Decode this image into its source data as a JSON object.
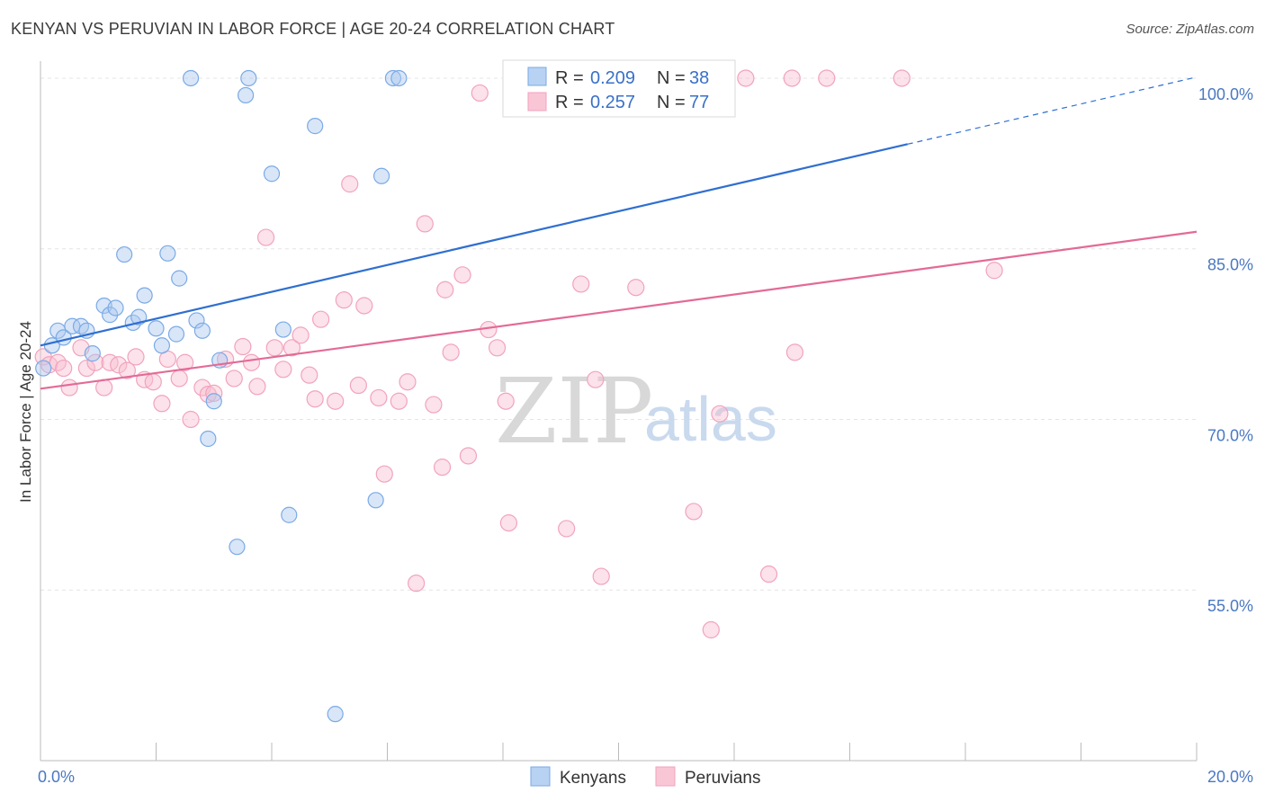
{
  "header": {
    "title": "KENYAN VS PERUVIAN IN LABOR FORCE | AGE 20-24 CORRELATION CHART",
    "source": "Source: ZipAtlas.com"
  },
  "watermark": {
    "zip": "ZIP",
    "atlas": "atlas"
  },
  "legend": {
    "r_label": "R =",
    "n_label": "N =",
    "kenyans": {
      "r": "0.209",
      "n": "38"
    },
    "peruvians": {
      "r": "0.257",
      "n": "77"
    }
  },
  "bottom_legend": {
    "kenyans": "Kenyans",
    "peruvians": "Peruvians"
  },
  "chart_data": {
    "type": "scatter",
    "xlabel": "",
    "ylabel": "In Labor Force | Age 20-24",
    "xlim": [
      0,
      20
    ],
    "ylim": [
      40,
      101.5
    ],
    "x_tick_labels": [
      "0.0%",
      "20.0%"
    ],
    "y_ticks": [
      55,
      70,
      85,
      100
    ],
    "y_tick_labels": [
      "55.0%",
      "70.0%",
      "85.0%",
      "100.0%"
    ],
    "grid": true,
    "colors": {
      "kenyans": "#7aaae6",
      "peruvians": "#f1a3bd",
      "kenyans_line": "#2f6fd0",
      "peruvians_line": "#e36a96"
    },
    "series": [
      {
        "name": "Kenyans",
        "trend": {
          "x0": 0,
          "y0": 76.5,
          "x1": 20,
          "y1": 100.1,
          "solid_until": 15
        },
        "points": [
          [
            0.05,
            74.5
          ],
          [
            0.2,
            76.5
          ],
          [
            0.3,
            77.8
          ],
          [
            0.4,
            77.2
          ],
          [
            0.55,
            78.2
          ],
          [
            0.7,
            78.2
          ],
          [
            0.8,
            77.8
          ],
          [
            0.9,
            75.8
          ],
          [
            1.1,
            80.0
          ],
          [
            1.2,
            79.2
          ],
          [
            1.3,
            79.8
          ],
          [
            1.45,
            84.5
          ],
          [
            1.6,
            78.5
          ],
          [
            1.7,
            79.0
          ],
          [
            1.8,
            80.9
          ],
          [
            2.0,
            78.0
          ],
          [
            2.1,
            76.5
          ],
          [
            2.2,
            84.6
          ],
          [
            2.35,
            77.5
          ],
          [
            2.4,
            82.4
          ],
          [
            2.6,
            100.0
          ],
          [
            2.7,
            78.7
          ],
          [
            2.8,
            77.8
          ],
          [
            2.9,
            68.3
          ],
          [
            3.0,
            71.6
          ],
          [
            3.1,
            75.2
          ],
          [
            3.4,
            58.8
          ],
          [
            3.55,
            98.5
          ],
          [
            3.6,
            100.0
          ],
          [
            4.0,
            91.6
          ],
          [
            4.2,
            77.9
          ],
          [
            4.3,
            61.6
          ],
          [
            4.75,
            95.8
          ],
          [
            5.1,
            44.1
          ],
          [
            5.8,
            62.9
          ],
          [
            5.9,
            91.4
          ],
          [
            6.1,
            100.0
          ],
          [
            6.2,
            100.0
          ]
        ]
      },
      {
        "name": "Peruvians",
        "trend": {
          "x0": 0,
          "y0": 72.7,
          "x1": 20,
          "y1": 86.5,
          "solid_until": 20
        },
        "points": [
          [
            0.05,
            75.5
          ],
          [
            0.15,
            74.8
          ],
          [
            0.3,
            75.0
          ],
          [
            0.4,
            74.5
          ],
          [
            0.5,
            72.8
          ],
          [
            0.7,
            76.3
          ],
          [
            0.8,
            74.5
          ],
          [
            0.95,
            75.0
          ],
          [
            1.1,
            72.8
          ],
          [
            1.2,
            75.0
          ],
          [
            1.35,
            74.8
          ],
          [
            1.5,
            74.3
          ],
          [
            1.65,
            75.5
          ],
          [
            1.8,
            73.5
          ],
          [
            1.95,
            73.3
          ],
          [
            2.1,
            71.4
          ],
          [
            2.2,
            75.3
          ],
          [
            2.4,
            73.6
          ],
          [
            2.5,
            75.0
          ],
          [
            2.6,
            70.0
          ],
          [
            2.8,
            72.8
          ],
          [
            2.9,
            72.2
          ],
          [
            3.0,
            72.3
          ],
          [
            3.2,
            75.3
          ],
          [
            3.35,
            73.6
          ],
          [
            3.5,
            76.4
          ],
          [
            3.65,
            75.0
          ],
          [
            3.75,
            72.9
          ],
          [
            3.9,
            86.0
          ],
          [
            4.05,
            76.3
          ],
          [
            4.2,
            74.4
          ],
          [
            4.35,
            76.3
          ],
          [
            4.5,
            77.4
          ],
          [
            4.65,
            73.9
          ],
          [
            4.75,
            71.8
          ],
          [
            4.85,
            78.8
          ],
          [
            5.1,
            71.6
          ],
          [
            5.25,
            80.5
          ],
          [
            5.35,
            90.7
          ],
          [
            5.5,
            73.0
          ],
          [
            5.6,
            80.0
          ],
          [
            5.85,
            71.9
          ],
          [
            5.95,
            65.2
          ],
          [
            6.2,
            71.6
          ],
          [
            6.35,
            73.3
          ],
          [
            6.5,
            55.6
          ],
          [
            6.65,
            87.2
          ],
          [
            6.8,
            71.3
          ],
          [
            6.95,
            65.8
          ],
          [
            7.0,
            81.4
          ],
          [
            7.1,
            75.9
          ],
          [
            7.3,
            82.7
          ],
          [
            7.4,
            66.8
          ],
          [
            7.6,
            98.7
          ],
          [
            7.75,
            77.9
          ],
          [
            7.9,
            76.3
          ],
          [
            8.05,
            71.6
          ],
          [
            8.1,
            60.9
          ],
          [
            8.2,
            100.0
          ],
          [
            8.4,
            100.0
          ],
          [
            8.5,
            100.0
          ],
          [
            9.1,
            60.4
          ],
          [
            9.35,
            81.9
          ],
          [
            9.6,
            73.5
          ],
          [
            9.7,
            56.2
          ],
          [
            10.0,
            100.0
          ],
          [
            10.3,
            81.6
          ],
          [
            11.3,
            61.9
          ],
          [
            11.6,
            51.5
          ],
          [
            11.75,
            70.5
          ],
          [
            12.2,
            100.0
          ],
          [
            12.6,
            56.4
          ],
          [
            13.0,
            100.0
          ],
          [
            13.05,
            75.9
          ],
          [
            13.6,
            100.0
          ],
          [
            14.9,
            100.0
          ],
          [
            16.5,
            83.1
          ]
        ]
      }
    ]
  }
}
